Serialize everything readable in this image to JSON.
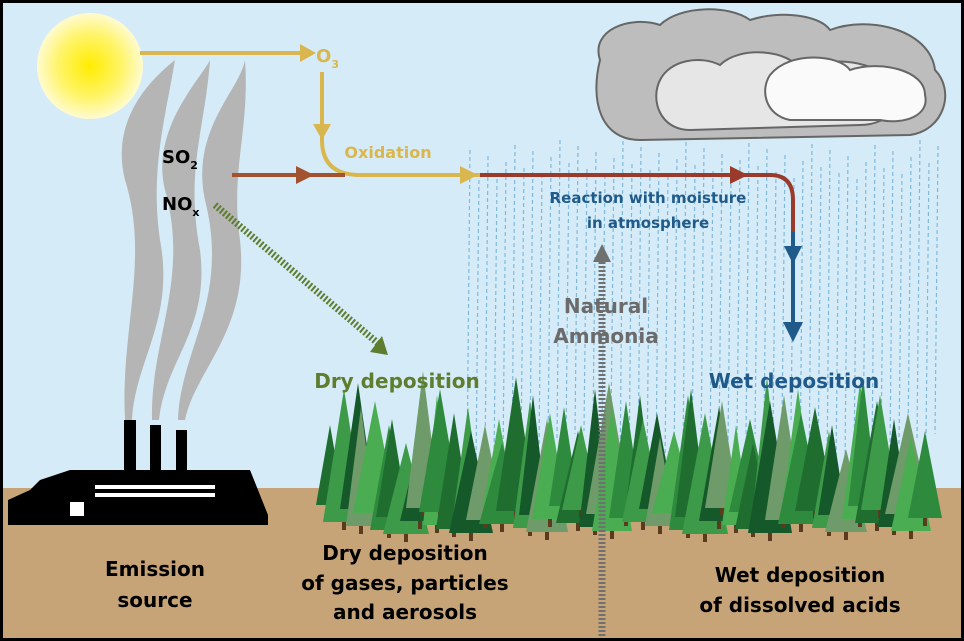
{
  "labels": {
    "o3": {
      "base": "O",
      "sub": "3"
    },
    "oxidation": "Oxidation",
    "so2": {
      "base": "SO",
      "sub": "2"
    },
    "nox": {
      "base": "NO",
      "sub": "x"
    },
    "reaction": [
      "Reaction with moisture",
      "in atmosphere"
    ],
    "ammonia": [
      "Natural",
      "Ammonia"
    ],
    "dry_deposition": "Dry deposition",
    "wet_deposition": "Wet deposition",
    "emission": [
      "Emission",
      "source"
    ],
    "dry_bottom": [
      "Dry deposition",
      "of gases, particles",
      "and aerosols"
    ],
    "wet_bottom": [
      "Wet deposition",
      "of dissolved acids"
    ]
  }
}
